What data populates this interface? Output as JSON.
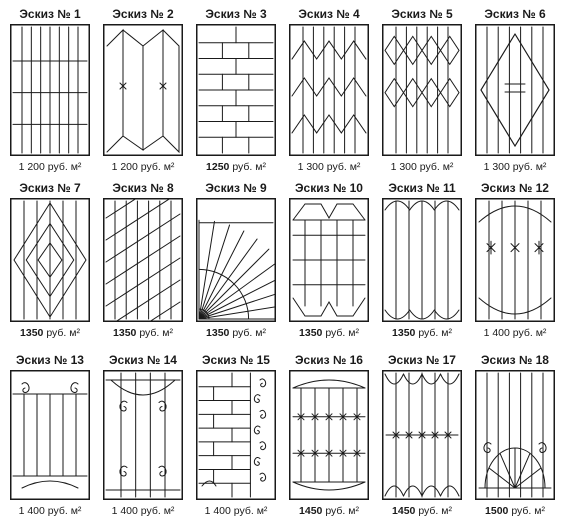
{
  "colors": {
    "frame": "#1a1a1a",
    "background": "#ffffff"
  },
  "sketches": [
    {
      "title": "Эскиз № 1",
      "price_num": "1 200",
      "price_unit": "руб. м²",
      "num_bold": false,
      "pattern": "straight-grid"
    },
    {
      "title": "Эскиз № 2",
      "price_num": "1 200",
      "price_unit": "руб. м²",
      "num_bold": false,
      "pattern": "diamond-panels"
    },
    {
      "title": "Эскиз № 3",
      "price_num": "1250",
      "price_unit": "руб. м²",
      "num_bold": true,
      "pattern": "brickwork"
    },
    {
      "title": "Эскиз № 4",
      "price_num": "1 300",
      "price_unit": "руб. м²",
      "num_bold": false,
      "pattern": "zigzag"
    },
    {
      "title": "Эскиз № 5",
      "price_num": "1 300",
      "price_unit": "руб. м²",
      "num_bold": false,
      "pattern": "zigzag-diamonds"
    },
    {
      "title": "Эскиз № 6",
      "price_num": "1 300",
      "price_unit": "руб. м²",
      "num_bold": false,
      "pattern": "center-diamond"
    },
    {
      "title": "Эскиз № 7",
      "price_num": "1350",
      "price_unit": "руб. м²",
      "num_bold": true,
      "pattern": "nested-diamonds"
    },
    {
      "title": "Эскиз № 8",
      "price_num": "1350",
      "price_unit": "руб. м²",
      "num_bold": true,
      "pattern": "diagonal-bars"
    },
    {
      "title": "Эскиз № 9",
      "price_num": "1350",
      "price_unit": "руб. м²",
      "num_bold": true,
      "pattern": "sunburst"
    },
    {
      "title": "Эскиз № 10",
      "price_num": "1350",
      "price_unit": "руб. м²",
      "num_bold": true,
      "pattern": "pointed-arch"
    },
    {
      "title": "Эскиз № 11",
      "price_num": "1350",
      "price_unit": "руб. м²",
      "num_bold": true,
      "pattern": "arches"
    },
    {
      "title": "Эскиз № 12",
      "price_num": "1 400",
      "price_unit": "руб. м²",
      "num_bold": false,
      "pattern": "arch-spikes"
    },
    {
      "title": "Эскиз № 13",
      "price_num": "1 400",
      "price_unit": "руб. м²",
      "num_bold": false,
      "pattern": "scroll-top-bottom"
    },
    {
      "title": "Эскиз № 14",
      "price_num": "1 400",
      "price_unit": "руб. м²",
      "num_bold": false,
      "pattern": "scroll-corners"
    },
    {
      "title": "Эскиз № 15",
      "price_num": "1 400",
      "price_unit": "руб. м²",
      "num_bold": false,
      "pattern": "brick-scroll-column"
    },
    {
      "title": "Эскиз № 16",
      "price_num": "1450",
      "price_unit": "руб. м²",
      "num_bold": true,
      "pattern": "grid-stars"
    },
    {
      "title": "Эскиз № 17",
      "price_num": "1450",
      "price_unit": "руб. м²",
      "num_bold": true,
      "pattern": "scallop-stars"
    },
    {
      "title": "Эскиз № 18",
      "price_num": "1500",
      "price_unit": "руб. м²",
      "num_bold": true,
      "pattern": "fan-scrolls"
    }
  ]
}
